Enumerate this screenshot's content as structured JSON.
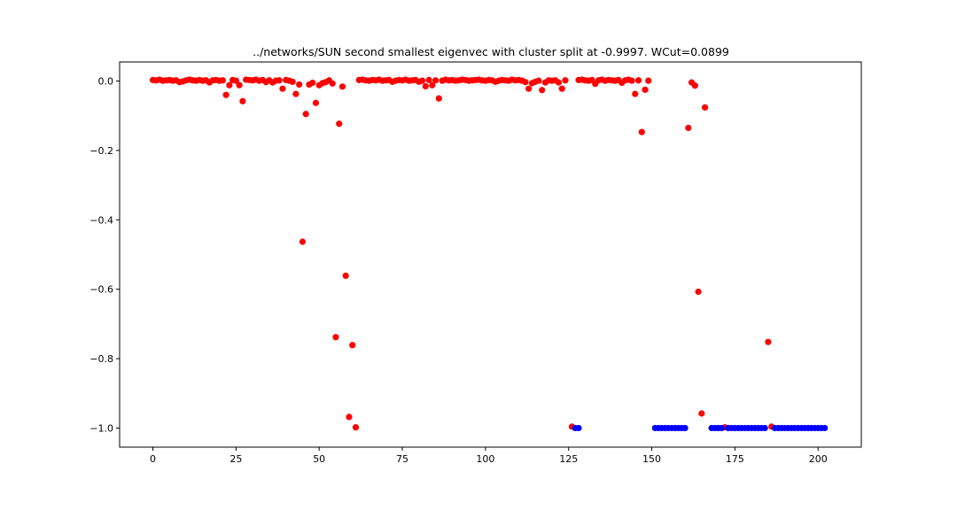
{
  "chart_data": {
    "type": "scatter",
    "title": "../networks/SUN second smallest eigenvec with cluster split at -0.9997. WCut=0.0899",
    "xlabel": "",
    "ylabel": "",
    "xlim": [
      -10,
      213
    ],
    "ylim": [
      -1.055,
      0.055
    ],
    "xticks": [
      0,
      25,
      50,
      75,
      100,
      125,
      150,
      175,
      200
    ],
    "xtick_labels": [
      "0",
      "25",
      "50",
      "75",
      "100",
      "125",
      "150",
      "175",
      "200"
    ],
    "yticks": [
      0.0,
      -0.2,
      -0.4,
      -0.6,
      -0.8,
      -1.0
    ],
    "ytick_labels": [
      "0.0",
      "−0.2",
      "−0.4",
      "−0.6",
      "−0.8",
      "−1.0"
    ],
    "grid": false,
    "series": [
      {
        "color": "#ff0000",
        "points": [
          [
            0,
            0.003
          ],
          [
            1,
            0.002
          ],
          [
            2,
            0.004
          ],
          [
            3,
            0.001
          ],
          [
            4,
            0.002
          ],
          [
            5,
            0.003
          ],
          [
            6,
            0.001
          ],
          [
            7,
            0.002
          ],
          [
            8,
            -0.003
          ],
          [
            9,
            -0.001
          ],
          [
            10,
            0.002
          ],
          [
            11,
            0.004
          ],
          [
            12,
            0.002
          ],
          [
            13,
            0.001
          ],
          [
            14,
            0.003
          ],
          [
            15,
            0.001
          ],
          [
            16,
            0.002
          ],
          [
            17,
            -0.004
          ],
          [
            18,
            0.002
          ],
          [
            19,
            0.003
          ],
          [
            20,
            0.001
          ],
          [
            21,
            0.002
          ],
          [
            22,
            -0.04
          ],
          [
            23,
            -0.012
          ],
          [
            24,
            0.003
          ],
          [
            25,
            0.001
          ],
          [
            26,
            -0.012
          ],
          [
            27,
            -0.058
          ],
          [
            28,
            0.004
          ],
          [
            29,
            0.003
          ],
          [
            30,
            0.002
          ],
          [
            31,
            0.004
          ],
          [
            32,
            0.001
          ],
          [
            33,
            0.003
          ],
          [
            34,
            -0.003
          ],
          [
            35,
            0.002
          ],
          [
            36,
            -0.004
          ],
          [
            37,
            0.001
          ],
          [
            38,
            0.002
          ],
          [
            39,
            -0.022
          ],
          [
            40,
            0.003
          ],
          [
            41,
            0.001
          ],
          [
            42,
            -0.002
          ],
          [
            43,
            -0.037
          ],
          [
            44,
            -0.01
          ],
          [
            45,
            -0.463
          ],
          [
            46,
            -0.095
          ],
          [
            47,
            -0.01
          ],
          [
            48,
            -0.005
          ],
          [
            49,
            -0.063
          ],
          [
            50,
            -0.012
          ],
          [
            51,
            -0.006
          ],
          [
            52,
            -0.003
          ],
          [
            53,
            0.002
          ],
          [
            54,
            -0.007
          ],
          [
            55,
            -0.738
          ],
          [
            56,
            -0.123
          ],
          [
            57,
            -0.016
          ],
          [
            58,
            -0.561
          ],
          [
            59,
            -0.968
          ],
          [
            60,
            -0.761
          ],
          [
            61,
            -0.998
          ],
          [
            62,
            0.003
          ],
          [
            63,
            0.004
          ],
          [
            64,
            0.002
          ],
          [
            65,
            0.001
          ],
          [
            66,
            0.003
          ],
          [
            67,
            0.002
          ],
          [
            68,
            0.004
          ],
          [
            69,
            0.001
          ],
          [
            70,
            0.002
          ],
          [
            71,
            0.003
          ],
          [
            72,
            -0.002
          ],
          [
            73,
            0.001
          ],
          [
            74,
            0.003
          ],
          [
            75,
            0.002
          ],
          [
            76,
            0.004
          ],
          [
            77,
            0.001
          ],
          [
            78,
            0.002
          ],
          [
            79,
            0.003
          ],
          [
            80,
            -0.002
          ],
          [
            81,
            0.001
          ],
          [
            82,
            -0.015
          ],
          [
            83,
            0.003
          ],
          [
            84,
            -0.012
          ],
          [
            85,
            0.002
          ],
          [
            86,
            -0.05
          ],
          [
            87,
            0.001
          ],
          [
            88,
            0.004
          ],
          [
            89,
            0.002
          ],
          [
            90,
            0.003
          ],
          [
            91,
            0.001
          ],
          [
            92,
            0.002
          ],
          [
            93,
            0.004
          ],
          [
            94,
            0.003
          ],
          [
            95,
            0.001
          ],
          [
            96,
            0.002
          ],
          [
            97,
            0.003
          ],
          [
            98,
            0.004
          ],
          [
            99,
            0.002
          ],
          [
            100,
            0.001
          ],
          [
            101,
            0.003
          ],
          [
            102,
            0.002
          ],
          [
            103,
            -0.002
          ],
          [
            104,
            0.001
          ],
          [
            105,
            0.003
          ],
          [
            106,
            0.002
          ],
          [
            107,
            0.001
          ],
          [
            108,
            0.004
          ],
          [
            109,
            0.002
          ],
          [
            110,
            0.003
          ],
          [
            111,
            0.001
          ],
          [
            112,
            -0.003
          ],
          [
            113,
            -0.022
          ],
          [
            114,
            -0.006
          ],
          [
            115,
            -0.002
          ],
          [
            116,
            0.001
          ],
          [
            117,
            -0.026
          ],
          [
            118,
            -0.004
          ],
          [
            119,
            0.002
          ],
          [
            120,
            0.001
          ],
          [
            121,
            0.002
          ],
          [
            122,
            -0.004
          ],
          [
            123,
            -0.022
          ],
          [
            124,
            0.002
          ],
          [
            126,
            -0.996
          ],
          [
            128,
            0.003
          ],
          [
            129,
            0.004
          ],
          [
            130,
            0.002
          ],
          [
            131,
            0.001
          ],
          [
            132,
            0.003
          ],
          [
            133,
            -0.008
          ],
          [
            134,
            0.002
          ],
          [
            135,
            0.004
          ],
          [
            136,
            0.001
          ],
          [
            137,
            0.003
          ],
          [
            138,
            0.002
          ],
          [
            139,
            0.001
          ],
          [
            140,
            0.003
          ],
          [
            141,
            -0.005
          ],
          [
            142,
            0.002
          ],
          [
            143,
            0.004
          ],
          [
            144,
            0.001
          ],
          [
            145,
            -0.037
          ],
          [
            146,
            0.002
          ],
          [
            147,
            -0.147
          ],
          [
            148,
            -0.025
          ],
          [
            149,
            0.001
          ],
          [
            161,
            -0.135
          ],
          [
            162,
            -0.004
          ],
          [
            163,
            -0.013
          ],
          [
            164,
            -0.607
          ],
          [
            165,
            -0.958
          ],
          [
            166,
            -0.076
          ],
          [
            172,
            -0.998
          ],
          [
            185,
            -0.752
          ],
          [
            186,
            -0.996
          ]
        ]
      },
      {
        "color": "#0000ff",
        "points": [
          [
            127,
            -1.0
          ],
          [
            128,
            -1.0
          ],
          [
            151,
            -1.0
          ],
          [
            152,
            -1.0
          ],
          [
            153,
            -1.0
          ],
          [
            154,
            -1.0
          ],
          [
            155,
            -1.0
          ],
          [
            156,
            -1.0
          ],
          [
            157,
            -1.0
          ],
          [
            158,
            -1.0
          ],
          [
            159,
            -1.0
          ],
          [
            160,
            -1.0
          ],
          [
            168,
            -1.0
          ],
          [
            169,
            -1.0
          ],
          [
            170,
            -1.0
          ],
          [
            171,
            -1.0
          ],
          [
            173,
            -1.0
          ],
          [
            174,
            -1.0
          ],
          [
            175,
            -1.0
          ],
          [
            176,
            -1.0
          ],
          [
            177,
            -1.0
          ],
          [
            178,
            -1.0
          ],
          [
            179,
            -1.0
          ],
          [
            180,
            -1.0
          ],
          [
            181,
            -1.0
          ],
          [
            182,
            -1.0
          ],
          [
            183,
            -1.0
          ],
          [
            184,
            -1.0
          ],
          [
            187,
            -1.0
          ],
          [
            188,
            -1.0
          ],
          [
            189,
            -1.0
          ],
          [
            190,
            -1.0
          ],
          [
            191,
            -1.0
          ],
          [
            192,
            -1.0
          ],
          [
            193,
            -1.0
          ],
          [
            194,
            -1.0
          ],
          [
            195,
            -1.0
          ],
          [
            196,
            -1.0
          ],
          [
            197,
            -1.0
          ],
          [
            198,
            -1.0
          ],
          [
            199,
            -1.0
          ],
          [
            200,
            -1.0
          ],
          [
            201,
            -1.0
          ],
          [
            202,
            -1.0
          ]
        ]
      }
    ]
  }
}
